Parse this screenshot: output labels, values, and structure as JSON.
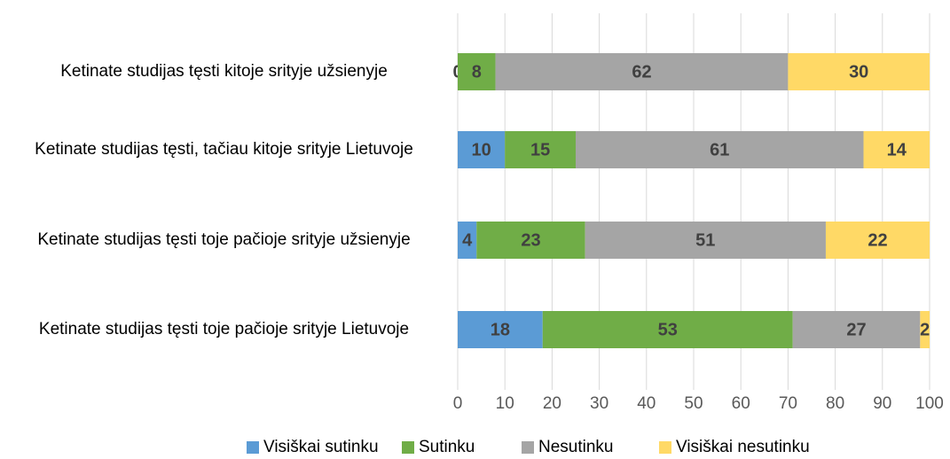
{
  "chart_data": {
    "type": "stacked_barh",
    "categories": [
      "Ketinate studijas tęsti kitoje srityje užsienyje",
      "Ketinate studijas tęsti, tačiau kitoje srityje Lietuvoje",
      "Ketinate studijas tęsti toje pačioje srityje užsienyje",
      "Ketinate studijas tęsti toje pačioje srityje Lietuvoje"
    ],
    "series": [
      {
        "name": "Visiškai sutinku",
        "color": "#5b9bd5",
        "values": [
          0,
          10,
          4,
          18
        ]
      },
      {
        "name": "Sutinku",
        "color": "#70ad47",
        "values": [
          8,
          15,
          23,
          53
        ]
      },
      {
        "name": "Nesutinku",
        "color": "#a5a5a5",
        "values": [
          62,
          61,
          51,
          27
        ]
      },
      {
        "name": "Visiškai nesutinku",
        "color": "#ffd966",
        "values": [
          30,
          14,
          22,
          2
        ]
      }
    ],
    "xlim": [
      0,
      100
    ],
    "xticks": [
      0,
      10,
      20,
      30,
      40,
      50,
      60,
      70,
      80,
      90,
      100
    ],
    "grid": true,
    "legend": "bottom"
  }
}
